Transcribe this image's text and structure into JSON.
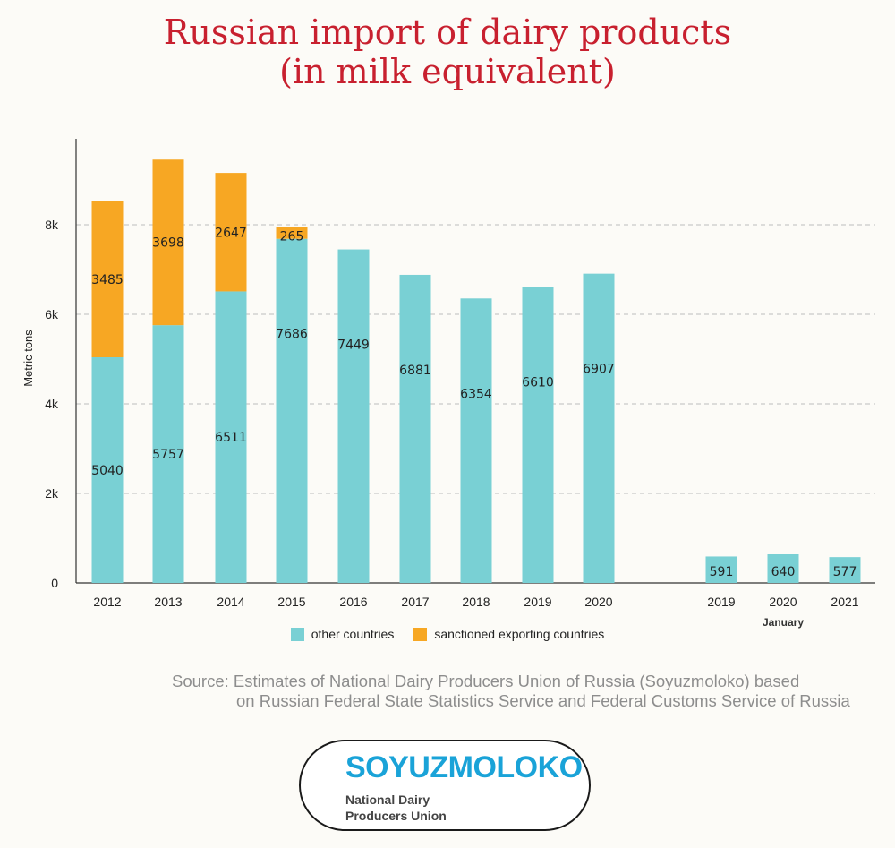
{
  "title_line1": "Russian import of dairy products",
  "title_line2": "(in milk equivalent)",
  "colors": {
    "other": "#79d0d4",
    "sanctioned": "#f7a723",
    "title": "#c8202f",
    "grid": "#bdbdbd"
  },
  "chart_data": {
    "type": "bar",
    "stacked": true,
    "ylabel": "Metric tons",
    "ylim": [
      0,
      10000
    ],
    "yticks": [
      0,
      2000,
      4000,
      6000,
      8000
    ],
    "ytick_labels": [
      "0",
      "2k",
      "4k",
      "6k",
      "8k"
    ],
    "grid": true,
    "legend_position": "bottom",
    "categories": [
      "2012",
      "2013",
      "2014",
      "2015",
      "2016",
      "2017",
      "2018",
      "2019",
      "2020",
      "2019",
      "2020",
      "2021"
    ],
    "category_group_label": "January",
    "series": [
      {
        "name": "other countries",
        "values": [
          5040,
          5757,
          6511,
          7686,
          7449,
          6881,
          6354,
          6610,
          6907,
          591,
          640,
          577
        ]
      },
      {
        "name": "sanctioned exporting countries",
        "values": [
          3485,
          3698,
          2647,
          265,
          0,
          0,
          0,
          0,
          0,
          0,
          0,
          0
        ]
      }
    ]
  },
  "legend": {
    "other": "other countries",
    "sanctioned": "sanctioned exporting countries"
  },
  "source": {
    "line1": "Source: Estimates of National Dairy Producers Union of Russia (Soyuzmoloko) based",
    "line2": "on Russian Federal State Statistics Service and Federal Customs Service of Russia"
  },
  "logo": {
    "name": "SOYUZMOLOKO",
    "sub1": "National Dairy",
    "sub2": "Producers Union"
  }
}
